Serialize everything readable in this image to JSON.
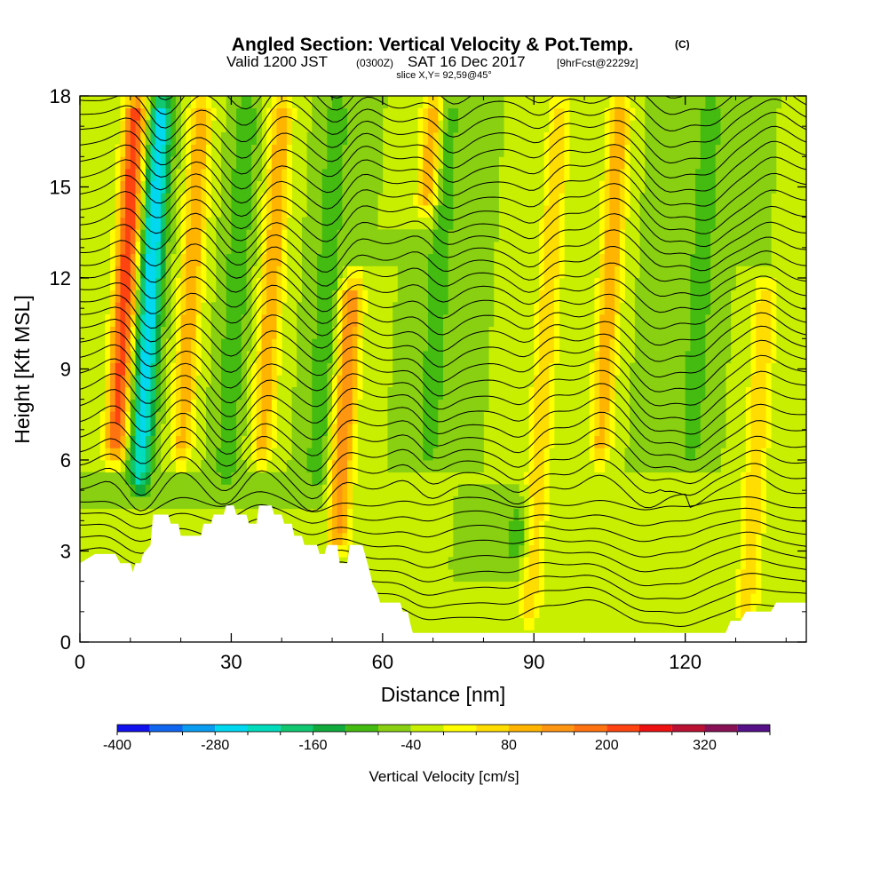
{
  "title": {
    "main": "Angled Section: Vertical Velocity & Pot.Temp.",
    "main_unit": "(C)",
    "valid_prefix": "Valid 1200 JST",
    "valid_z": "(0300Z)",
    "valid_date": "SAT 16 Dec 2017",
    "valid_fcst": "[9hrFcst@2229z]",
    "slice": "slice X,Y= 92,59@45°"
  },
  "chart_data": {
    "type": "heatmap",
    "xlabel": "Distance [nm]",
    "ylabel": "Height [Kft MSL]",
    "xlim": [
      0,
      144
    ],
    "ylim": [
      0,
      18
    ],
    "xticks": [
      0,
      30,
      60,
      90,
      120
    ],
    "yticks": [
      0,
      3,
      6,
      9,
      12,
      15,
      18
    ],
    "x_minor_ticks": [
      10,
      20,
      40,
      50,
      70,
      80,
      100,
      110,
      130,
      140
    ],
    "y_minor_ticks": [
      1,
      2,
      4,
      5,
      7,
      8,
      10,
      11,
      13,
      14,
      16,
      17
    ],
    "colorbar": {
      "title": "Vertical Velocity [cm/s]",
      "min": -400,
      "max": 400,
      "step": 40,
      "labels": [
        "-400",
        "-280",
        "-160",
        "-40",
        "80",
        "200",
        "320"
      ],
      "label_values": [
        -400,
        -280,
        -160,
        -40,
        80,
        200,
        320
      ],
      "colors": [
        "#1111ee",
        "#1166f0",
        "#0a9cf0",
        "#00d8f0",
        "#00dcbc",
        "#11c870",
        "#11aa3c",
        "#44bb11",
        "#88d011",
        "#c8ee00",
        "#ffff00",
        "#ffdd00",
        "#ffb400",
        "#ff9611",
        "#ff7411",
        "#ff4411",
        "#ee1111",
        "#bb1133",
        "#881155",
        "#551188"
      ]
    },
    "background_value": -40,
    "updrafts": [
      {
        "x": 7,
        "height_range": [
          6,
          18
        ],
        "max": 240
      },
      {
        "x": 20,
        "height_range": [
          6,
          18
        ],
        "max": 120
      },
      {
        "x": 36,
        "height_range": [
          6,
          18
        ],
        "max": 120
      },
      {
        "x": 52,
        "height_range": [
          3,
          12
        ],
        "max": 160
      },
      {
        "x": 66,
        "height_range": [
          14,
          18
        ],
        "max": 120
      },
      {
        "x": 91,
        "height_range": [
          0.5,
          18
        ],
        "max": 80
      },
      {
        "x": 103,
        "height_range": [
          6,
          18
        ],
        "max": 120
      },
      {
        "x": 134,
        "height_range": [
          0.5,
          12
        ],
        "max": 80
      }
    ],
    "downdrafts": [
      {
        "x": 12,
        "height_range": [
          5,
          18
        ],
        "min": -280
      },
      {
        "x": 29,
        "height_range": [
          5,
          18
        ],
        "min": -120
      },
      {
        "x": 47,
        "height_range": [
          5,
          18
        ],
        "min": -120
      },
      {
        "x": 69,
        "height_range": [
          6,
          18
        ],
        "min": -120
      },
      {
        "x": 88,
        "height_range": [
          2.5,
          4.5
        ],
        "min": -120
      },
      {
        "x": 113,
        "height_range": [
          6,
          18
        ],
        "min": -80
      },
      {
        "x": 121,
        "height_range": [
          6,
          18
        ],
        "min": -120
      }
    ],
    "theta_contours": {
      "levels_C": [
        10,
        11,
        12,
        13,
        14,
        15,
        16,
        17,
        18,
        19,
        20,
        21,
        22,
        23,
        24,
        25,
        26,
        27,
        28,
        29,
        30,
        31,
        32,
        33,
        34,
        35,
        36,
        37,
        38,
        39,
        40,
        41,
        42,
        43,
        44,
        45,
        46,
        47,
        48
      ],
      "color": "#000000"
    },
    "terrain": {
      "fill": "#ffffff",
      "profile": [
        [
          0,
          2.6
        ],
        [
          3,
          2.9
        ],
        [
          7,
          2.9
        ],
        [
          8,
          2.6
        ],
        [
          10,
          2.6
        ],
        [
          10.5,
          2.3
        ],
        [
          11,
          2.6
        ],
        [
          12,
          2.6
        ],
        [
          12.5,
          2.9
        ],
        [
          14,
          3.2
        ],
        [
          14.5,
          4.2
        ],
        [
          17.5,
          4.2
        ],
        [
          18,
          3.9
        ],
        [
          19.5,
          3.9
        ],
        [
          20,
          3.5
        ],
        [
          24,
          3.5
        ],
        [
          24.5,
          3.9
        ],
        [
          26,
          3.9
        ],
        [
          26.5,
          4.2
        ],
        [
          28.5,
          4.2
        ],
        [
          29,
          4.5
        ],
        [
          30.5,
          4.5
        ],
        [
          31,
          4.2
        ],
        [
          33,
          4.2
        ],
        [
          33.5,
          3.9
        ],
        [
          35,
          3.9
        ],
        [
          35.5,
          4.5
        ],
        [
          38,
          4.5
        ],
        [
          38.5,
          4.2
        ],
        [
          40,
          4.2
        ],
        [
          40.5,
          3.9
        ],
        [
          42,
          3.9
        ],
        [
          42.5,
          3.5
        ],
        [
          44,
          3.5
        ],
        [
          44.5,
          3.2
        ],
        [
          47,
          3.2
        ],
        [
          47.5,
          2.9
        ],
        [
          48.5,
          2.9
        ],
        [
          49,
          3.2
        ],
        [
          51,
          3.2
        ],
        [
          51.5,
          2.6
        ],
        [
          53,
          2.6
        ],
        [
          53.5,
          3.2
        ],
        [
          56,
          3.2
        ],
        [
          56.5,
          2.9
        ],
        [
          57,
          2.6
        ],
        [
          57.5,
          2.3
        ],
        [
          58,
          1.9
        ],
        [
          59,
          1.6
        ],
        [
          59.5,
          1.3
        ],
        [
          63.5,
          1.3
        ],
        [
          64,
          1.0
        ],
        [
          65,
          1.0
        ],
        [
          65.5,
          0.6
        ],
        [
          66,
          0.3
        ],
        [
          128,
          0.3
        ],
        [
          129,
          0.7
        ],
        [
          131,
          0.7
        ],
        [
          132,
          1.0
        ],
        [
          137,
          1.0
        ],
        [
          138,
          1.3
        ],
        [
          144,
          1.3
        ]
      ]
    }
  }
}
